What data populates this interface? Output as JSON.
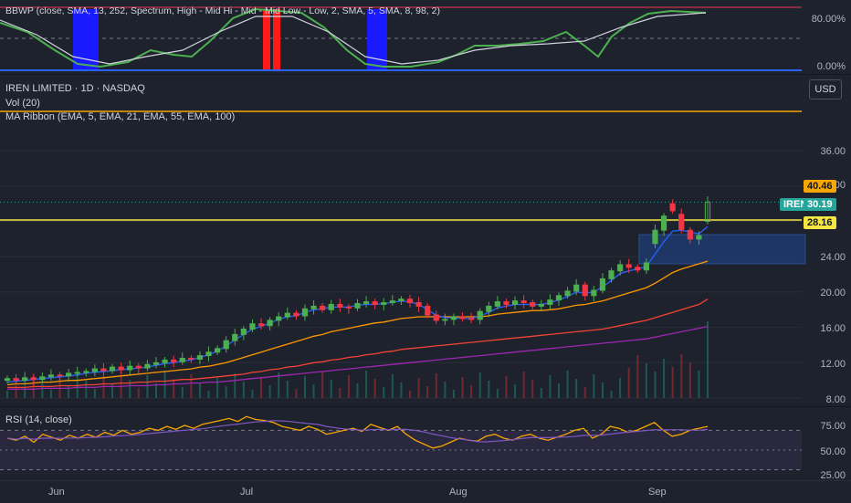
{
  "bbwp": {
    "legend": "BBWP (close, SMA, 13, 252, Spectrum, High - Mid Hi - Mid - Mid Low - Low, 2, SMA, 5, SMA, 8, 98, 2)",
    "axis_labels": [
      "80.00%",
      "0.00%"
    ]
  },
  "main": {
    "symbol_title": "IREN LIMITED · 1D · NASDAQ",
    "volume_legend": "Vol (20)",
    "ma_legend": "MA Ribbon (EMA, 5, EMA, 21, EMA, 55, EMA, 100)",
    "currency_button": "USD",
    "price_axis": [
      "36.00",
      "32.00",
      "28.00",
      "24.00",
      "20.00",
      "16.00",
      "12.00",
      "8.00"
    ],
    "resistance_label": "40.46",
    "support_label": "28.16",
    "ticker_tag": "IREN",
    "last_price": "30.19"
  },
  "rsi": {
    "legend": "RSI (14, close)",
    "axis_labels": [
      "75.00",
      "50.00",
      "25.00"
    ]
  },
  "time_axis": [
    "Jun",
    "Jul",
    "Aug",
    "Sep"
  ],
  "colors": {
    "background": "#1e222d",
    "up_candle": "#26a69a",
    "up_candle_bright": "#4caf50",
    "down_candle": "#f23645",
    "resistance_line": "#f7a600",
    "support_line": "#f5e642",
    "rsi_line": "#f7a600",
    "ema5": "#2962ff",
    "ema21": "#ff9800",
    "ema55": "#f44336",
    "ema100": "#9c27b0"
  },
  "chart_data": {
    "type": "candlestick",
    "title": "IREN LIMITED · 1D · NASDAQ",
    "x_labels": [
      "Jun",
      "Jul",
      "Aug",
      "Sep"
    ],
    "ylim": [
      8,
      40
    ],
    "horizontal_levels": [
      40.46,
      28.16
    ],
    "last_price": 30.19,
    "closes": [
      10.2,
      10.0,
      10.3,
      10.1,
      10.4,
      10.6,
      10.5,
      10.8,
      10.9,
      11.0,
      11.3,
      11.1,
      11.5,
      11.2,
      11.6,
      11.4,
      11.8,
      12.0,
      12.3,
      12.1,
      12.5,
      12.4,
      12.8,
      13.2,
      13.6,
      14.5,
      15.2,
      15.8,
      16.4,
      16.2,
      16.8,
      17.2,
      17.6,
      17.3,
      18.1,
      18.4,
      18.0,
      18.6,
      18.3,
      18.2,
      18.7,
      18.9,
      18.6,
      18.8,
      19.0,
      19.2,
      18.8,
      18.4,
      17.4,
      16.8,
      16.9,
      17.2,
      17.0,
      16.9,
      17.8,
      18.4,
      18.9,
      18.6,
      19.0,
      18.8,
      18.4,
      18.6,
      19.1,
      19.6,
      20.1,
      20.8,
      19.6,
      20.2,
      21.5,
      22.4,
      23.1,
      22.8,
      22.5,
      23.3,
      27.0,
      28.6,
      29.2,
      27.1,
      26.0,
      26.4,
      30.19
    ],
    "opens": [
      10.0,
      10.2,
      10.0,
      10.3,
      10.1,
      10.4,
      10.6,
      10.5,
      10.8,
      10.9,
      11.0,
      11.3,
      11.1,
      11.5,
      11.2,
      11.6,
      11.4,
      11.8,
      12.0,
      12.3,
      12.1,
      12.5,
      12.4,
      12.8,
      13.2,
      13.6,
      14.5,
      15.2,
      15.8,
      16.4,
      16.2,
      16.8,
      17.2,
      17.6,
      17.3,
      18.1,
      18.4,
      18.0,
      18.6,
      18.3,
      18.2,
      18.7,
      18.9,
      18.6,
      18.8,
      19.0,
      19.2,
      18.8,
      18.4,
      17.4,
      16.8,
      16.9,
      17.2,
      17.0,
      16.9,
      17.8,
      18.4,
      18.9,
      18.6,
      19.0,
      18.8,
      18.4,
      18.6,
      19.1,
      19.6,
      20.1,
      20.8,
      19.6,
      20.2,
      21.5,
      22.4,
      23.1,
      22.8,
      22.5,
      25.5,
      27.0,
      30.0,
      28.8,
      27.0,
      26.0,
      28.0
    ],
    "ema5": [
      9.8,
      9.9,
      10.0,
      10.1,
      10.2,
      10.3,
      10.4,
      10.5,
      10.6,
      10.8,
      10.9,
      11.0,
      11.1,
      11.2,
      11.3,
      11.4,
      11.5,
      11.7,
      11.9,
      12.0,
      12.2,
      12.3,
      12.6,
      12.9,
      13.3,
      13.9,
      14.6,
      15.2,
      15.8,
      16.1,
      16.5,
      16.9,
      17.2,
      17.3,
      17.7,
      18.0,
      18.1,
      18.3,
      18.3,
      18.3,
      18.5,
      18.6,
      18.6,
      18.7,
      18.8,
      19.0,
      18.9,
      18.6,
      18.0,
      17.4,
      17.1,
      17.1,
      17.0,
      17.0,
      17.3,
      17.7,
      18.2,
      18.4,
      18.6,
      18.6,
      18.6,
      18.6,
      18.8,
      19.1,
      19.5,
      20.0,
      19.9,
      20.0,
      20.6,
      21.3,
      22.1,
      22.4,
      22.6,
      22.9,
      24.3,
      25.7,
      26.9,
      27.0,
      26.8,
      26.6,
      27.4
    ],
    "ema21": [
      9.5,
      9.6,
      9.6,
      9.7,
      9.8,
      9.8,
      9.9,
      10.0,
      10.0,
      10.1,
      10.2,
      10.3,
      10.4,
      10.5,
      10.6,
      10.7,
      10.8,
      10.9,
      11.0,
      11.1,
      11.2,
      11.3,
      11.5,
      11.6,
      11.8,
      12.0,
      12.3,
      12.6,
      12.9,
      13.2,
      13.5,
      13.8,
      14.1,
      14.4,
      14.7,
      15.0,
      15.2,
      15.5,
      15.7,
      15.9,
      16.1,
      16.3,
      16.5,
      16.6,
      16.8,
      17.0,
      17.1,
      17.2,
      17.2,
      17.2,
      17.2,
      17.2,
      17.2,
      17.2,
      17.2,
      17.3,
      17.5,
      17.6,
      17.7,
      17.8,
      17.9,
      17.9,
      18.0,
      18.1,
      18.3,
      18.5,
      18.6,
      18.8,
      19.0,
      19.3,
      19.6,
      19.9,
      20.2,
      20.5,
      21.0,
      21.6,
      22.2,
      22.6,
      22.9,
      23.2,
      23.5
    ],
    "ema55": [
      9.2,
      9.2,
      9.2,
      9.3,
      9.3,
      9.3,
      9.4,
      9.4,
      9.4,
      9.5,
      9.5,
      9.6,
      9.6,
      9.7,
      9.7,
      9.8,
      9.8,
      9.9,
      9.9,
      10.0,
      10.1,
      10.1,
      10.2,
      10.3,
      10.4,
      10.5,
      10.6,
      10.7,
      10.9,
      11.0,
      11.2,
      11.3,
      11.5,
      11.6,
      11.8,
      12.0,
      12.1,
      12.3,
      12.4,
      12.6,
      12.7,
      12.9,
      13.0,
      13.2,
      13.3,
      13.5,
      13.6,
      13.7,
      13.8,
      13.9,
      14.0,
      14.1,
      14.2,
      14.3,
      14.4,
      14.5,
      14.6,
      14.7,
      14.8,
      14.9,
      15.0,
      15.1,
      15.2,
      15.3,
      15.4,
      15.5,
      15.6,
      15.7,
      15.8,
      16.0,
      16.2,
      16.4,
      16.6,
      16.8,
      17.1,
      17.4,
      17.7,
      18.0,
      18.3,
      18.6,
      19.2
    ],
    "ema100": [
      9.0,
      9.0,
      9.0,
      9.0,
      9.1,
      9.1,
      9.1,
      9.1,
      9.2,
      9.2,
      9.2,
      9.3,
      9.3,
      9.3,
      9.4,
      9.4,
      9.4,
      9.5,
      9.5,
      9.6,
      9.6,
      9.7,
      9.7,
      9.8,
      9.8,
      9.9,
      10.0,
      10.1,
      10.2,
      10.3,
      10.4,
      10.5,
      10.6,
      10.7,
      10.8,
      10.9,
      11.0,
      11.1,
      11.2,
      11.3,
      11.4,
      11.5,
      11.6,
      11.7,
      11.8,
      11.9,
      12.0,
      12.1,
      12.2,
      12.3,
      12.4,
      12.5,
      12.6,
      12.7,
      12.8,
      12.9,
      13.0,
      13.1,
      13.2,
      13.3,
      13.4,
      13.5,
      13.6,
      13.7,
      13.8,
      13.9,
      14.0,
      14.1,
      14.2,
      14.3,
      14.4,
      14.5,
      14.6,
      14.7,
      14.9,
      15.1,
      15.3,
      15.5,
      15.7,
      15.9,
      16.1
    ],
    "rsi_ylim": [
      25,
      75
    ]
  }
}
